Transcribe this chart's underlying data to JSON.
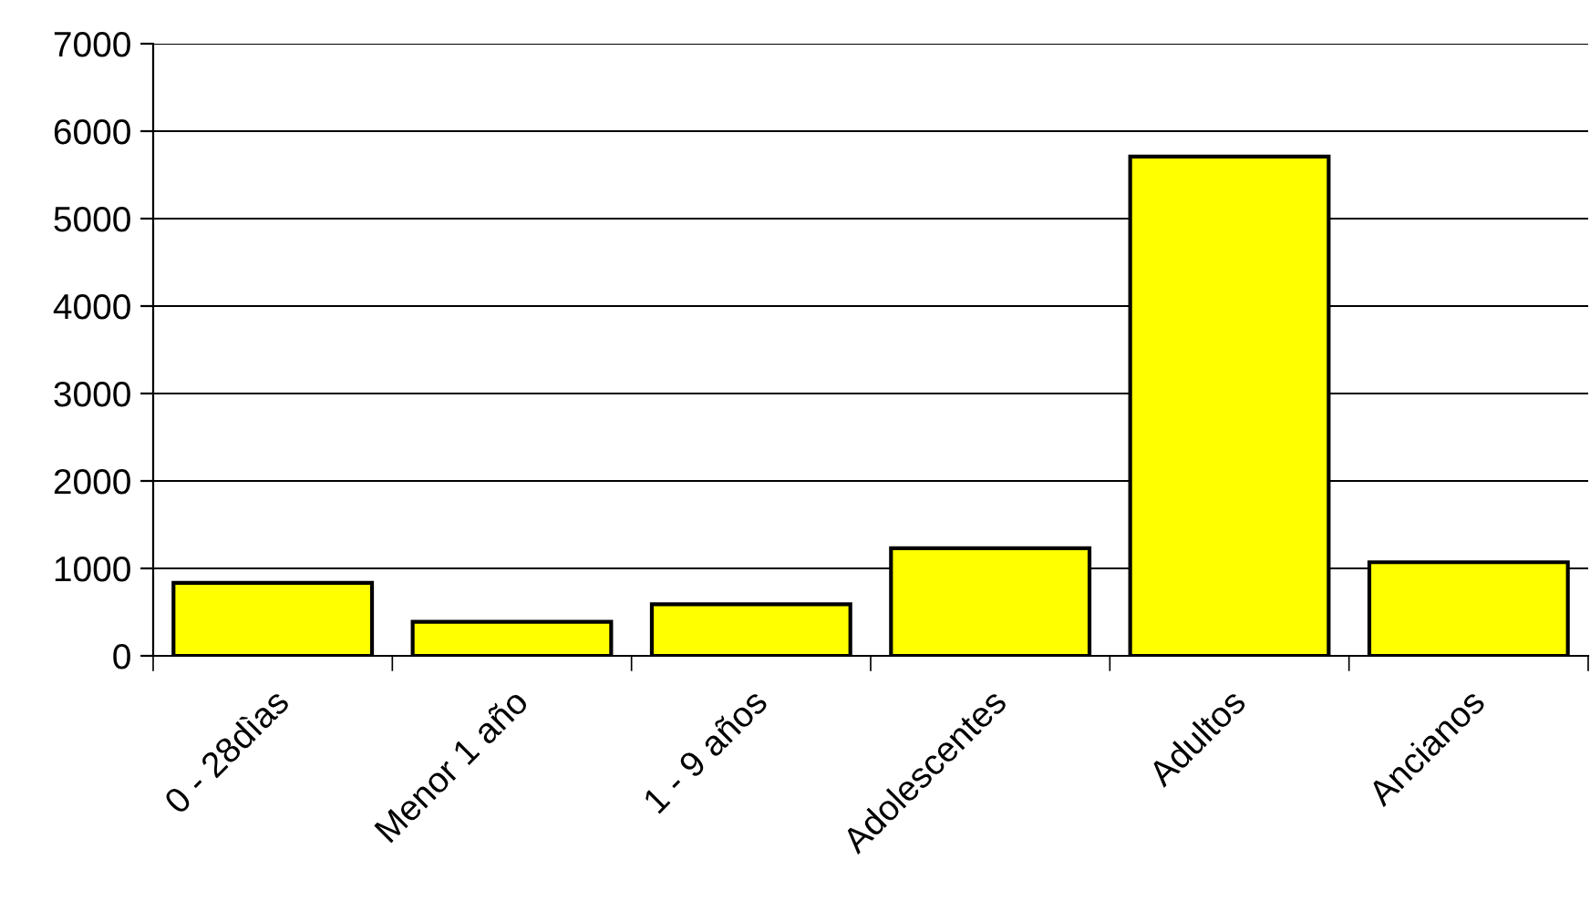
{
  "chart_data": {
    "type": "bar",
    "categories": [
      "0 - 28dìas",
      "Menor 1 año",
      "1 - 9 años",
      "Adolescentes",
      "Adultos",
      "Ancianos"
    ],
    "values": [
      835,
      390,
      590,
      1230,
      5710,
      1070
    ],
    "color": "#ffff00",
    "ylim": [
      0,
      7000
    ],
    "yticks": [
      0,
      1000,
      2000,
      3000,
      4000,
      5000,
      6000,
      7000
    ],
    "grid": "y"
  }
}
